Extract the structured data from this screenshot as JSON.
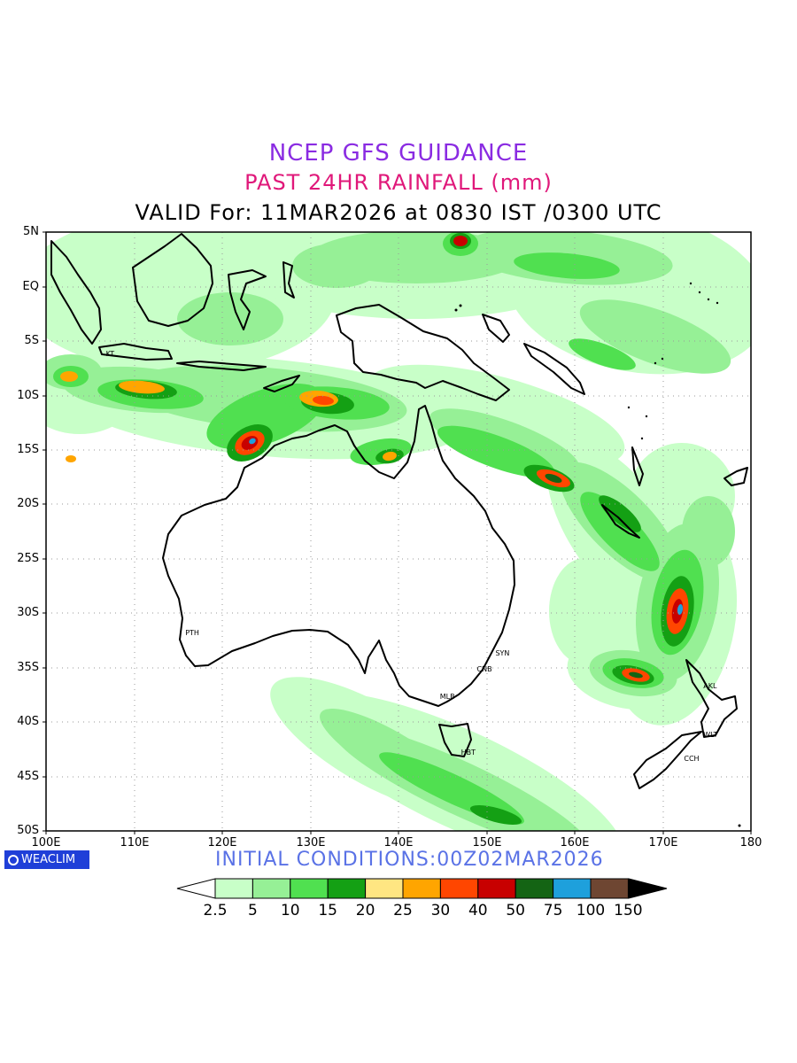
{
  "header": {
    "title": "NCEP GFS GUIDANCE",
    "subtitle": "PAST 24HR RAINFALL (mm)",
    "valid": "VALID For: 11MAR2026 at 0830 IST /0300 UTC"
  },
  "map": {
    "extent": {
      "lon": [
        100,
        180
      ],
      "lat": [
        -50,
        5
      ]
    },
    "lat_labels": [
      "5N",
      "EQ",
      "5S",
      "10S",
      "15S",
      "20S",
      "25S",
      "30S",
      "35S",
      "40S",
      "45S",
      "50S"
    ],
    "lon_labels": [
      "100E",
      "110E",
      "120E",
      "130E",
      "140E",
      "150E",
      "160E",
      "170E",
      "180"
    ],
    "cities": [
      {
        "code": "KT",
        "lon": 107,
        "lat": -6.3
      },
      {
        "code": "PTH",
        "lon": 116,
        "lat": -31.9
      },
      {
        "code": "SYN",
        "lon": 151.2,
        "lat": -33.8
      },
      {
        "code": "CNB",
        "lon": 149.1,
        "lat": -35.3
      },
      {
        "code": "MLB",
        "lon": 144.9,
        "lat": -37.8
      },
      {
        "code": "HBT",
        "lon": 147.3,
        "lat": -42.9
      },
      {
        "code": "AKL",
        "lon": 174.8,
        "lat": -36.8
      },
      {
        "code": "WLT",
        "lon": 174.8,
        "lat": -41.3
      },
      {
        "code": "CCH",
        "lon": 172.6,
        "lat": -43.5
      }
    ]
  },
  "footer": {
    "logo": "WEACLIM",
    "initial_conditions": "INITIAL  CONDITIONS:00Z02MAR2026"
  },
  "colorbar": {
    "labels": [
      "2.5",
      "5",
      "10",
      "15",
      "20",
      "25",
      "30",
      "40",
      "50",
      "75",
      "100",
      "150"
    ],
    "colors": [
      "#c8ffc8",
      "#96f096",
      "#50e050",
      "#14a014",
      "#ffe682",
      "#ffa500",
      "#ff4600",
      "#c80000",
      "#146414",
      "#1ea0dc",
      "#6e4632"
    ]
  },
  "rain_colors": {
    "light": "#c8ffc8",
    "low": "#96f096",
    "mid": "#50e050",
    "moderate": "#14a014",
    "yellow": "#ffe682",
    "orange": "#ffa500",
    "red": "#ff4600",
    "darkred": "#c80000",
    "darkgreen": "#146414",
    "blue": "#1ea0dc",
    "brown": "#6e4632"
  }
}
